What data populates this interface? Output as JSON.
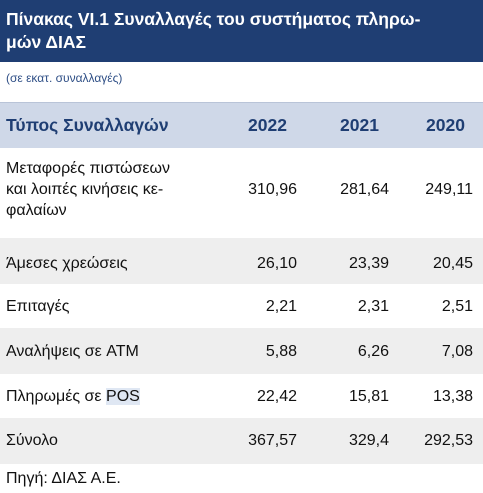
{
  "title": "Πίνακας VI.1 Συναλλαγές του συστήματος πληρω-\nμών ΔΙΑΣ",
  "title_line1": "Πίνακας VI.1 Συναλλαγές του συστήματος πληρω-",
  "title_line2": "μών ΔΙΑΣ",
  "units": "(σε εκατ. συναλλαγές)",
  "header": {
    "label": "Τύπος Συναλλαγών",
    "y2022": "2022",
    "y2021": "2021",
    "y2020": "2020"
  },
  "rows": [
    {
      "label_lines": [
        "Μεταφορές πιστώσεων",
        "και λοιπές κινήσεις κε-",
        "φαλαίων"
      ],
      "v2022": "310,96",
      "v2021": "281,64",
      "v2020": "249,11"
    },
    {
      "label": "Άμεσες χρεώσεις",
      "v2022": "26,10",
      "v2021": "23,39",
      "v2020": "20,45"
    },
    {
      "label": "Επιταγές",
      "v2022": "2,21",
      "v2021": "2,31",
      "v2020": "2,51"
    },
    {
      "label": "Αναλήψεις σε ATM",
      "v2022": "5,88",
      "v2021": "6,26",
      "v2020": "7,08"
    },
    {
      "label_pre": "Πληρωμές σε ",
      "label_hl": "POS",
      "v2022": "22,42",
      "v2021": "15,81",
      "v2020": "13,38"
    },
    {
      "label": "Σύνολο",
      "v2022": "367,57",
      "v2021": "329,4",
      "v2020": "292,53"
    }
  ],
  "source": "Πηγή: ΔΙΑΣ Α.Ε.",
  "colors": {
    "title_bg": "#1f3e73",
    "header_bg": "#cfd8e8",
    "row_shade": "#eeeeee"
  }
}
